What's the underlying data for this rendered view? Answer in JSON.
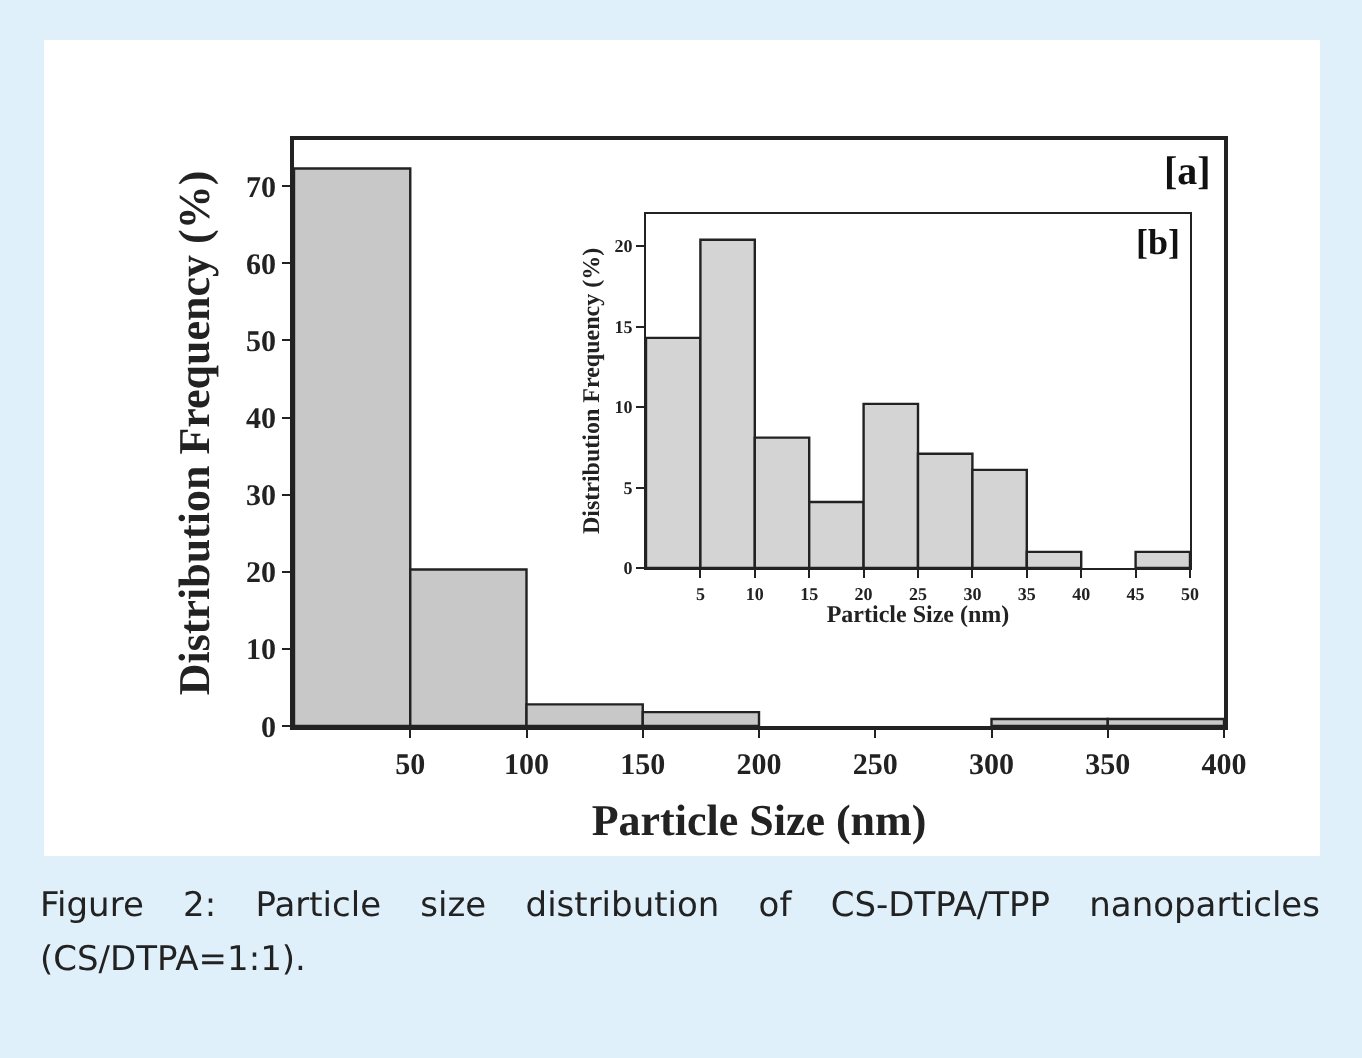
{
  "chart_data": [
    {
      "type": "histogram",
      "xlabel": "Particle Size (nm)",
      "ylabel": "Distribution Frequency (%)",
      "bins": [
        0,
        50,
        100,
        150,
        200,
        250,
        300,
        350,
        400
      ],
      "values": [
        72.3,
        20.3,
        2.8,
        1.8,
        0,
        0,
        0.9,
        0.9
      ],
      "color": "#c8c8c8",
      "xlim": [
        0,
        400
      ],
      "xticks": [
        50,
        100,
        150,
        200,
        250,
        300,
        350,
        400
      ],
      "ylim": [
        0,
        76
      ],
      "yticks": [
        0,
        10,
        20,
        30,
        40,
        50,
        60,
        70
      ],
      "annotations": [
        "[a]",
        "Figure 2: Particle size distribution of CS-DTPA/TPP nanoparticles (CS/DTPA=1:1)."
      ]
    },
    {
      "type": "histogram",
      "xlabel": "Particle Size (nm)",
      "ylabel": "Distribution Frequency (%)",
      "bins": [
        0,
        5,
        10,
        15,
        20,
        25,
        30,
        35,
        40,
        45,
        50
      ],
      "values": [
        14.3,
        20.4,
        8.1,
        4.1,
        10.2,
        7.1,
        6.1,
        1.0,
        0,
        1.0
      ],
      "color": "#d4d4d4",
      "xlim": [
        0,
        50
      ],
      "xticks": [
        5,
        10,
        15,
        20,
        25,
        30,
        35,
        40,
        45,
        50
      ],
      "ylim": [
        0,
        22
      ],
      "yticks": [
        0,
        5,
        10,
        15,
        20
      ],
      "annotations": [
        "[b]"
      ]
    }
  ]
}
